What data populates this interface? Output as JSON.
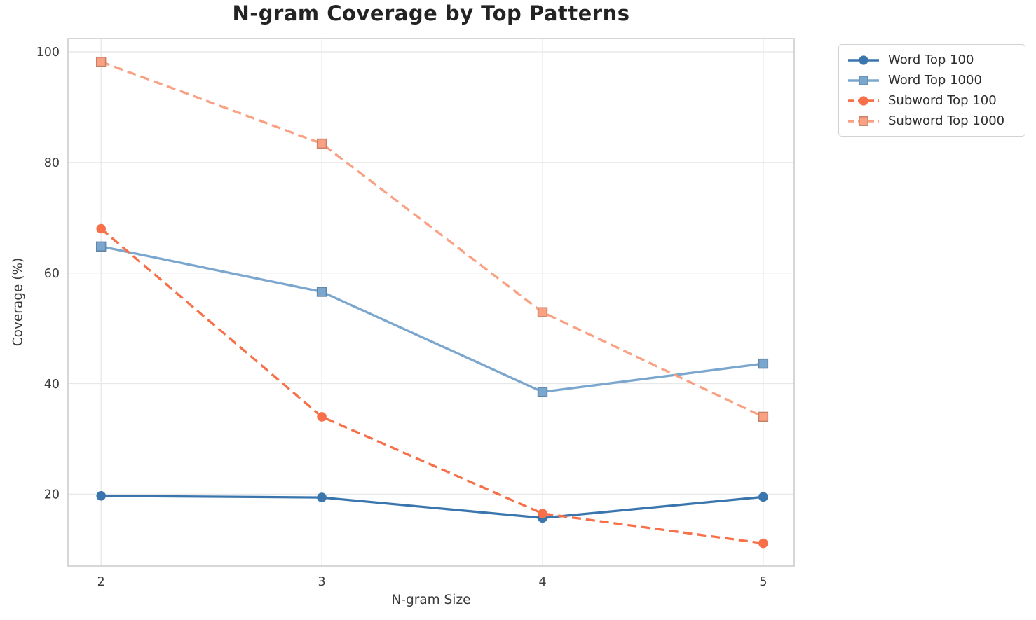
{
  "chart_data": {
    "type": "line",
    "title": "N-gram Coverage by Top Patterns",
    "xlabel": "N-gram Size",
    "ylabel": "Coverage (%)",
    "x": [
      2,
      3,
      4,
      5
    ],
    "x_tick_labels": [
      "2",
      "3",
      "4",
      "5"
    ],
    "y_ticks": [
      20,
      40,
      60,
      80,
      100
    ],
    "y_tick_labels": [
      "20",
      "40",
      "60",
      "80",
      "100"
    ],
    "xlim": [
      1.85,
      5.14
    ],
    "ylim": [
      7.0,
      102.4
    ],
    "grid": true,
    "legend_position": "outside-right-top",
    "series": [
      {
        "name": "Word Top 100",
        "values": [
          19.7,
          19.4,
          15.7,
          19.5
        ],
        "color": "#3a76ad",
        "marker": "circle",
        "line": "solid"
      },
      {
        "name": "Word Top 1000",
        "values": [
          64.8,
          56.6,
          38.5,
          43.6
        ],
        "color": "#7ba7cf",
        "marker": "square",
        "line": "solid"
      },
      {
        "name": "Subword Top 100",
        "values": [
          68.0,
          34.0,
          16.5,
          11.1
        ],
        "color": "#f7704a",
        "marker": "circle",
        "line": "dashed"
      },
      {
        "name": "Subword Top 1000",
        "values": [
          98.2,
          83.4,
          52.9,
          34.0
        ],
        "color": "#faa183",
        "marker": "square",
        "line": "dashed"
      }
    ],
    "style": {
      "grid_color": "#e8e8e8",
      "spine_color": "#cdcdcd",
      "tick_label_color": "#3d3d3d",
      "title_color": "#232323"
    }
  }
}
